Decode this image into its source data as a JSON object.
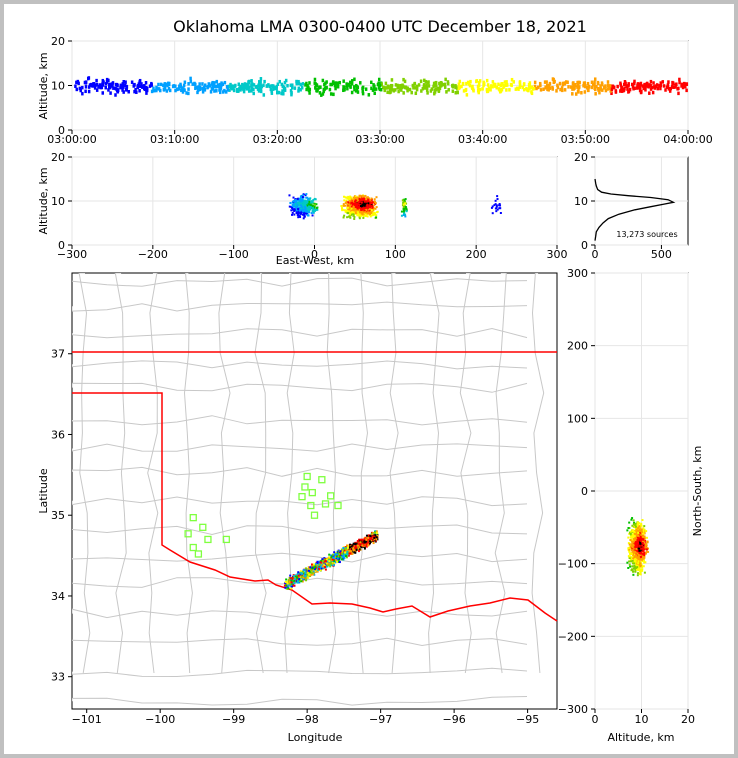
{
  "title": "Oklahoma LMA 0300-0400 UTC December 18, 2021",
  "source_count_label": "13,273 sources",
  "colors": {
    "state_border": "#ff0000",
    "county_lines": "#c8c8c8",
    "marker": "#7fff3f",
    "background": "#ffffff",
    "frame": "#c0c0c0"
  },
  "chart_data": [
    {
      "id": "time_height",
      "type": "scatter",
      "xlabel": "",
      "ylabel": "Altitude, km",
      "x_ticks": [
        "03:00:00",
        "03:10:00",
        "03:20:00",
        "03:30:00",
        "03:40:00",
        "03:50:00",
        "04:00:00"
      ],
      "xlim": [
        "03:00:00",
        "04:00:00"
      ],
      "ylim": [
        0,
        20
      ],
      "y_ticks": [
        0,
        10,
        20
      ],
      "altitude_band_km": [
        4,
        14
      ],
      "grid": true
    },
    {
      "id": "ew_altitude",
      "type": "scatter",
      "xlabel": "East-West, km",
      "ylabel": "Altitude, km",
      "xlim": [
        -300,
        300
      ],
      "x_ticks": [
        -300,
        -200,
        -100,
        0,
        100,
        200,
        300
      ],
      "ylim": [
        0,
        20
      ],
      "y_ticks": [
        0,
        10,
        20
      ],
      "grid": true
    },
    {
      "id": "altitude_histogram",
      "type": "line",
      "xlim": [
        0,
        700
      ],
      "x_ticks": [
        0,
        500
      ],
      "ylim": [
        0,
        20
      ],
      "y_ticks": [
        0,
        10,
        20
      ],
      "x": [
        0,
        5,
        10,
        30,
        60,
        100,
        180,
        300,
        420,
        520,
        590,
        550,
        420,
        250,
        120,
        50,
        20,
        10,
        5,
        0
      ],
      "y": [
        1,
        2,
        3,
        4,
        5,
        6,
        7,
        8,
        8.7,
        9.3,
        9.7,
        10.3,
        10.8,
        11.2,
        11.6,
        12,
        12.6,
        13.4,
        14,
        15
      ],
      "grid": true
    },
    {
      "id": "plan_view",
      "type": "scatter",
      "xlabel": "Longitude",
      "ylabel": "Latitude",
      "xlim": [
        -101.2,
        -94.6
      ],
      "ylim": [
        32.6,
        38.0
      ],
      "x_ticks": [
        -101,
        -100,
        -99,
        -98,
        -97,
        -96,
        -95
      ],
      "y_ticks": [
        33,
        34,
        35,
        36,
        37
      ],
      "station_markers": [
        {
          "lon": -99.55,
          "lat": 34.97
        },
        {
          "lon": -99.42,
          "lat": 34.85
        },
        {
          "lon": -99.62,
          "lat": 34.77
        },
        {
          "lon": -99.35,
          "lat": 34.7
        },
        {
          "lon": -99.55,
          "lat": 34.6
        },
        {
          "lon": -99.48,
          "lat": 34.52
        },
        {
          "lon": -99.1,
          "lat": 34.7
        },
        {
          "lon": -98.0,
          "lat": 35.48
        },
        {
          "lon": -97.8,
          "lat": 35.44
        },
        {
          "lon": -98.03,
          "lat": 35.35
        },
        {
          "lon": -97.93,
          "lat": 35.28
        },
        {
          "lon": -98.07,
          "lat": 35.23
        },
        {
          "lon": -97.68,
          "lat": 35.24
        },
        {
          "lon": -97.75,
          "lat": 35.14
        },
        {
          "lon": -97.95,
          "lat": 35.12
        },
        {
          "lon": -97.58,
          "lat": 35.12
        },
        {
          "lon": -97.9,
          "lat": 35.0
        }
      ]
    },
    {
      "id": "ns_altitude",
      "type": "scatter",
      "xlabel": "Altitude, km",
      "ylabel": "North-South, km",
      "xlim": [
        0,
        20
      ],
      "x_ticks": [
        0,
        10,
        20
      ],
      "ylim": [
        -300,
        300
      ],
      "y_ticks": [
        -300,
        -200,
        -100,
        0,
        100,
        200,
        300
      ],
      "grid": true
    }
  ]
}
